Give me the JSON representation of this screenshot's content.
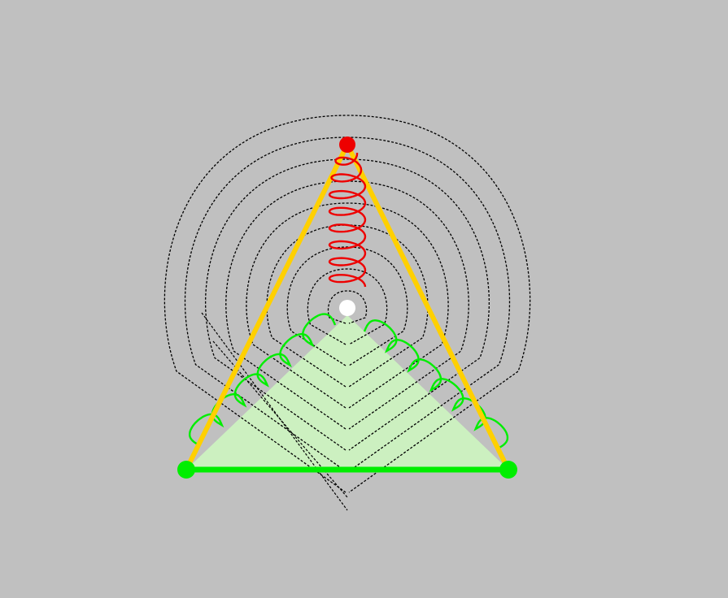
{
  "scene": {
    "colors": {
      "background": "#c0c0c0",
      "fill": "#ccf0c0",
      "triangle_side": "#ffd000",
      "base": "#00ee00",
      "spiral": "#ee0000",
      "wave": "#00ee00",
      "contour": "#000000",
      "apex_point": "#ee0000",
      "center_point": "#ffffff",
      "base_point": "#00ee00"
    },
    "vertices": [
      "apex",
      "base-left",
      "base-right"
    ],
    "spiral_turns": 8,
    "contour_rings": 9,
    "wave_bumps_per_side": 6
  }
}
